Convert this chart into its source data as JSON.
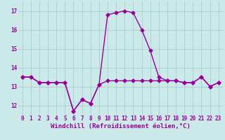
{
  "title": "",
  "xlabel": "Windchill (Refroidissement éolien,°C)",
  "ylabel": "",
  "background_color": "#cbe9e9",
  "grid_color": "#a0c8c8",
  "line_color": "#990099",
  "x_hours": [
    0,
    1,
    2,
    3,
    4,
    5,
    6,
    7,
    8,
    9,
    10,
    11,
    12,
    13,
    14,
    15,
    16,
    17,
    18,
    19,
    20,
    21,
    22,
    23
  ],
  "y_temp": [
    13.5,
    13.5,
    13.2,
    13.2,
    13.2,
    13.2,
    11.7,
    12.3,
    12.1,
    13.1,
    16.8,
    16.9,
    17.0,
    16.9,
    16.0,
    14.9,
    13.5,
    13.3,
    13.3,
    13.2,
    13.2,
    13.5,
    13.0,
    13.2
  ],
  "y_windchill": [
    13.5,
    13.5,
    13.2,
    13.2,
    13.2,
    13.2,
    11.7,
    12.3,
    12.1,
    13.1,
    13.3,
    13.3,
    13.3,
    13.3,
    13.3,
    13.3,
    13.3,
    13.3,
    13.3,
    13.2,
    13.2,
    13.5,
    13.0,
    13.2
  ],
  "ylim": [
    11.5,
    17.5
  ],
  "xlim": [
    -0.5,
    23.5
  ],
  "yticks": [
    12,
    13,
    14,
    15,
    16,
    17
  ],
  "xticks": [
    0,
    1,
    2,
    3,
    4,
    5,
    6,
    7,
    8,
    9,
    10,
    11,
    12,
    13,
    14,
    15,
    16,
    17,
    18,
    19,
    20,
    21,
    22,
    23
  ],
  "marker": "D",
  "marker_size": 2.5,
  "line_width": 1.0,
  "font_color": "#990099",
  "tick_fontsize": 5.5,
  "xlabel_fontsize": 6.5
}
